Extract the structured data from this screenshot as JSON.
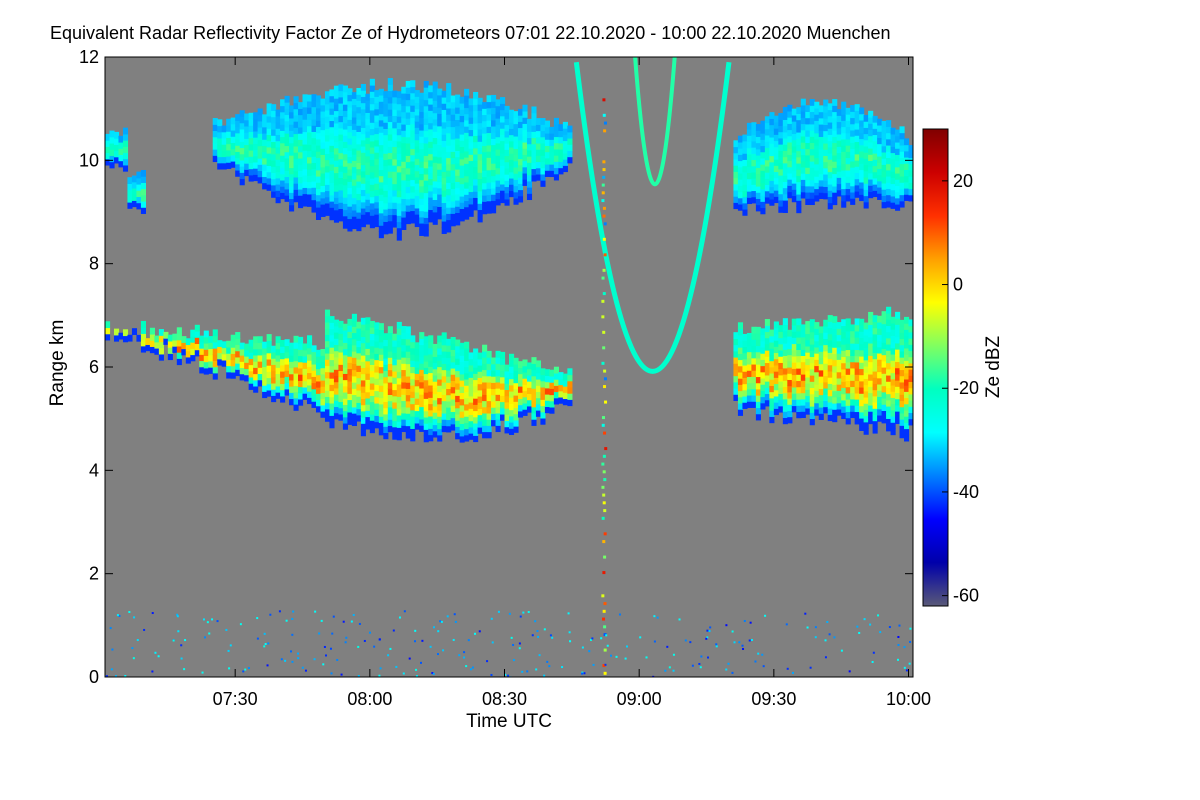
{
  "chart_data": {
    "type": "heatmap",
    "title": "Equivalent Radar Reflectivity Factor Ze of Hydrometeors   07:01 22.10.2020 - 10:00 22.10.2020 Muenchen",
    "xlabel": "Time UTC",
    "ylabel": "Range km",
    "xlim": [
      "07:01",
      "10:01"
    ],
    "ylim": [
      0,
      12
    ],
    "x_ticks": [
      "07:30",
      "08:00",
      "08:30",
      "09:00",
      "09:30",
      "10:00"
    ],
    "y_ticks": [
      "0",
      "2",
      "4",
      "6",
      "8",
      "10",
      "12"
    ],
    "background_color": "#808080",
    "colorbar": {
      "label": "Ze dBZ",
      "range": [
        -62,
        30
      ],
      "ticks": [
        "20",
        "0",
        "-20",
        "-40",
        "-60"
      ],
      "colors": [
        "#5a5a78",
        "#0000aa",
        "#0000ff",
        "#0080ff",
        "#00ffff",
        "#00ffc0",
        "#80ff60",
        "#ffff00",
        "#ffa000",
        "#ff3000",
        "#cc0000",
        "#800000"
      ]
    },
    "layers": [
      {
        "name": "lower cloud layer",
        "time_range": [
          "07:01",
          "10:01"
        ],
        "base_km": [
          4.5,
          6.7
        ],
        "top_km": [
          6.0,
          7.0
        ],
        "peak_dbz": 20
      },
      {
        "name": "upper cloud layer",
        "time_range": [
          "07:01",
          "10:01"
        ],
        "base_km": [
          8.5,
          9.5
        ],
        "top_km": [
          10.5,
          11.5
        ],
        "peak_dbz": -10
      }
    ]
  }
}
